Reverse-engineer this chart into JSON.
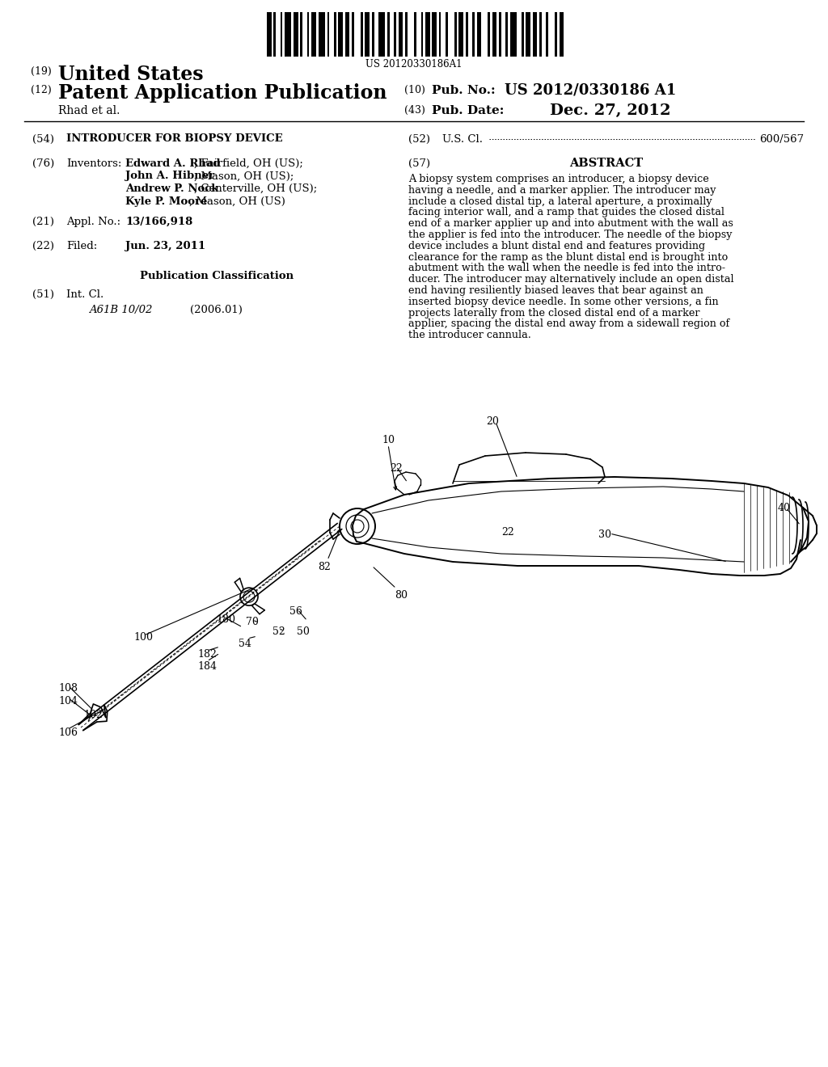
{
  "background_color": "#ffffff",
  "barcode_text": "US 20120330186A1",
  "pub_no_value": "US 2012/0330186 A1",
  "pub_date_value": "Dec. 27, 2012",
  "inventor_label": "Rhad et al.",
  "field54_title": "INTRODUCER FOR BIOPSY DEVICE",
  "field52_value": "600/567",
  "field57_title": "ABSTRACT",
  "abstract_lines": [
    "A biopsy system comprises an introducer, a biopsy device",
    "having a needle, and a marker applier. The introducer may",
    "include a closed distal tip, a lateral aperture, a proximally",
    "facing interior wall, and a ramp that guides the closed distal",
    "end of a marker applier up and into abutment with the wall as",
    "the applier is fed into the introducer. The needle of the biopsy",
    "device includes a blunt distal end and features providing",
    "clearance for the ramp as the blunt distal end is brought into",
    "abutment with the wall when the needle is fed into the intro-",
    "ducer. The introducer may alternatively include an open distal",
    "end having resiliently biased leaves that bear against an",
    "inserted biopsy device needle. In some other versions, a fin",
    "projects laterally from the closed distal end of a marker",
    "applier, spacing the distal end away from a sidewall region of",
    "the introducer cannula."
  ],
  "inventors_bold": [
    "Edward A. Rhad",
    "John A. Hibner",
    "Andrew P. Nock",
    "Kyle P. Moore"
  ],
  "inventors_rest": [
    ", Fairfield, OH (US);",
    ", Mason, OH (US);",
    ", Centerville, OH (US);",
    ", Mason, OH (US)"
  ],
  "field21_value": "13/166,918",
  "field22_value": "Jun. 23, 2011",
  "pub_class_label": "Publication Classification",
  "field51_class": "A61B 10/02",
  "field51_date": "(2006.01)"
}
